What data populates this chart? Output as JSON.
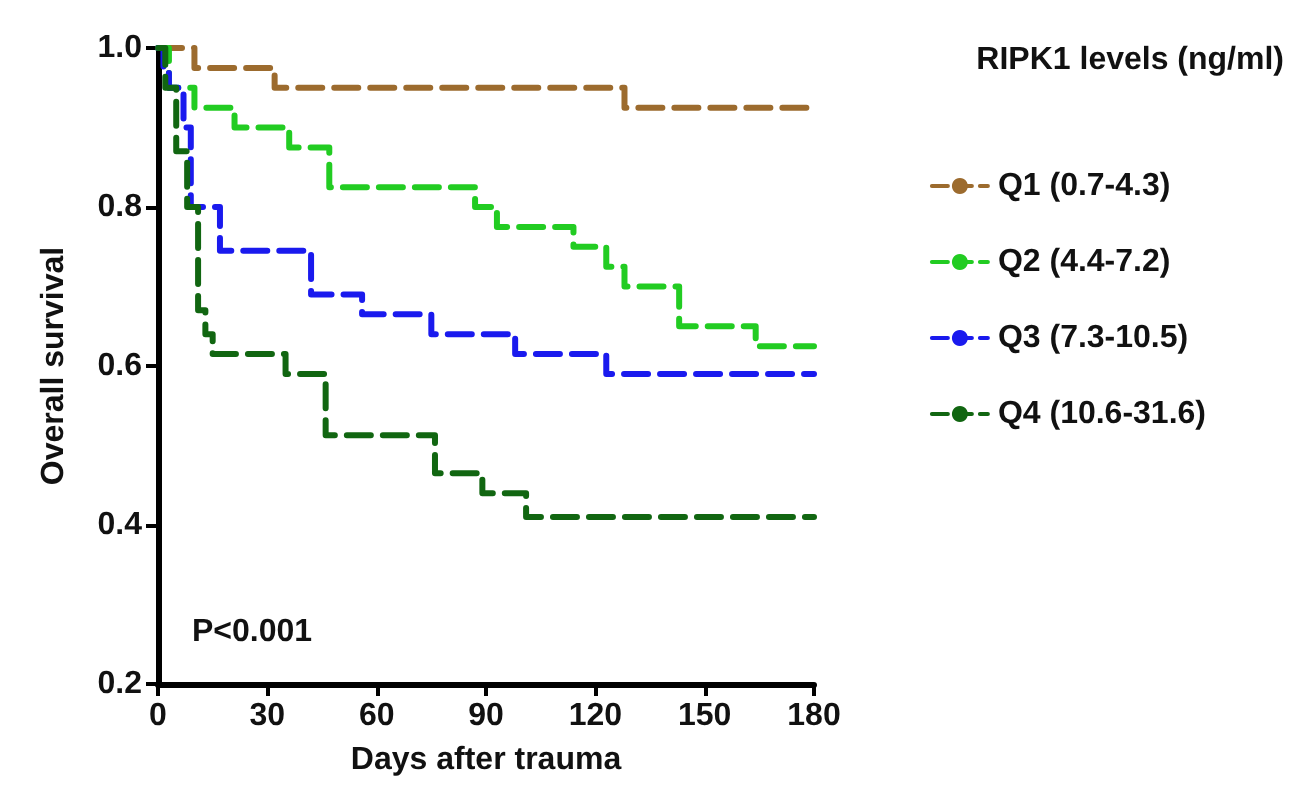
{
  "chart_data": {
    "type": "step",
    "xlabel": "Days after trauma",
    "ylabel": "Overall survival",
    "legend_title": "RIPK1 levels (ng/ml)",
    "xlim": [
      0,
      180
    ],
    "xticks": [
      0,
      30,
      60,
      90,
      120,
      150,
      180
    ],
    "ylim": [
      0.2,
      1.0
    ],
    "yticks": [
      {
        "value": 0.2,
        "label": "0.2"
      },
      {
        "value": 0.4,
        "label": "0.4"
      },
      {
        "value": 0.6,
        "label": "0.6"
      },
      {
        "value": 0.8,
        "label": "0.8"
      },
      {
        "value": 1.0,
        "label": "1.0"
      }
    ],
    "grid": false,
    "legend": "right",
    "line_style": "dashed",
    "marker": "none",
    "annotations": [
      "P<0.001"
    ],
    "series": [
      {
        "name": "Q1 (0.7-4.3)",
        "color": "#9c6b2e",
        "x": [
          0,
          10,
          32,
          128,
          180
        ],
        "values": [
          1.0,
          0.975,
          0.95,
          0.925,
          0.925
        ]
      },
      {
        "name": "Q2 (4.4-7.2)",
        "color": "#22cc22",
        "x": [
          0,
          3,
          10,
          21,
          36,
          47,
          87,
          93,
          114,
          123,
          128,
          143,
          164,
          180
        ],
        "values": [
          1.0,
          0.95,
          0.925,
          0.9,
          0.875,
          0.825,
          0.8,
          0.775,
          0.75,
          0.725,
          0.7,
          0.65,
          0.625,
          0.625
        ]
      },
      {
        "name": "Q3 (7.3-10.5)",
        "color": "#1a1aee",
        "x": [
          0,
          1.5,
          3,
          7,
          9,
          17,
          42,
          56,
          75,
          98,
          123,
          180
        ],
        "values": [
          1.0,
          0.975,
          0.95,
          0.9,
          0.8,
          0.745,
          0.69,
          0.665,
          0.64,
          0.615,
          0.59,
          0.59
        ]
      },
      {
        "name": "Q4 (10.6-31.6)",
        "color": "#116611",
        "x": [
          0,
          2,
          5,
          8,
          11,
          13,
          15,
          35,
          46,
          76,
          89,
          101,
          180
        ],
        "values": [
          1.0,
          0.95,
          0.87,
          0.8,
          0.67,
          0.64,
          0.615,
          0.59,
          0.513,
          0.465,
          0.44,
          0.41,
          0.41
        ]
      }
    ]
  }
}
